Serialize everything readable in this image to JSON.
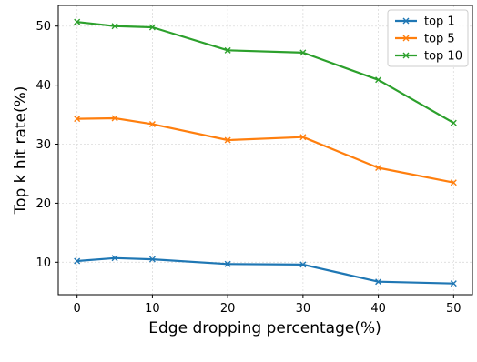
{
  "chart_data": {
    "type": "line",
    "title": "",
    "xlabel": "Edge dropping percentage(%)",
    "ylabel": "Top k hit rate(%)",
    "x": [
      0,
      5,
      10,
      20,
      30,
      40,
      50
    ],
    "xlim": [
      -2.5,
      52.5
    ],
    "ylim": [
      4.5,
      53.5
    ],
    "xticks": [
      0,
      10,
      20,
      30,
      40,
      50
    ],
    "yticks": [
      10,
      20,
      30,
      40,
      50
    ],
    "grid": true,
    "legend_position": "top-right",
    "marker": "x",
    "series": [
      {
        "name": "top 1",
        "color": "#1f77b4",
        "values": [
          10.2,
          10.7,
          10.5,
          9.7,
          9.6,
          6.7,
          6.4
        ]
      },
      {
        "name": "top 5",
        "color": "#ff7f0e",
        "values": [
          34.3,
          34.4,
          33.4,
          30.7,
          31.2,
          26.0,
          23.5
        ]
      },
      {
        "name": "top 10",
        "color": "#2ca02c",
        "values": [
          50.7,
          50.0,
          49.8,
          45.9,
          45.5,
          40.9,
          33.6
        ]
      }
    ]
  }
}
